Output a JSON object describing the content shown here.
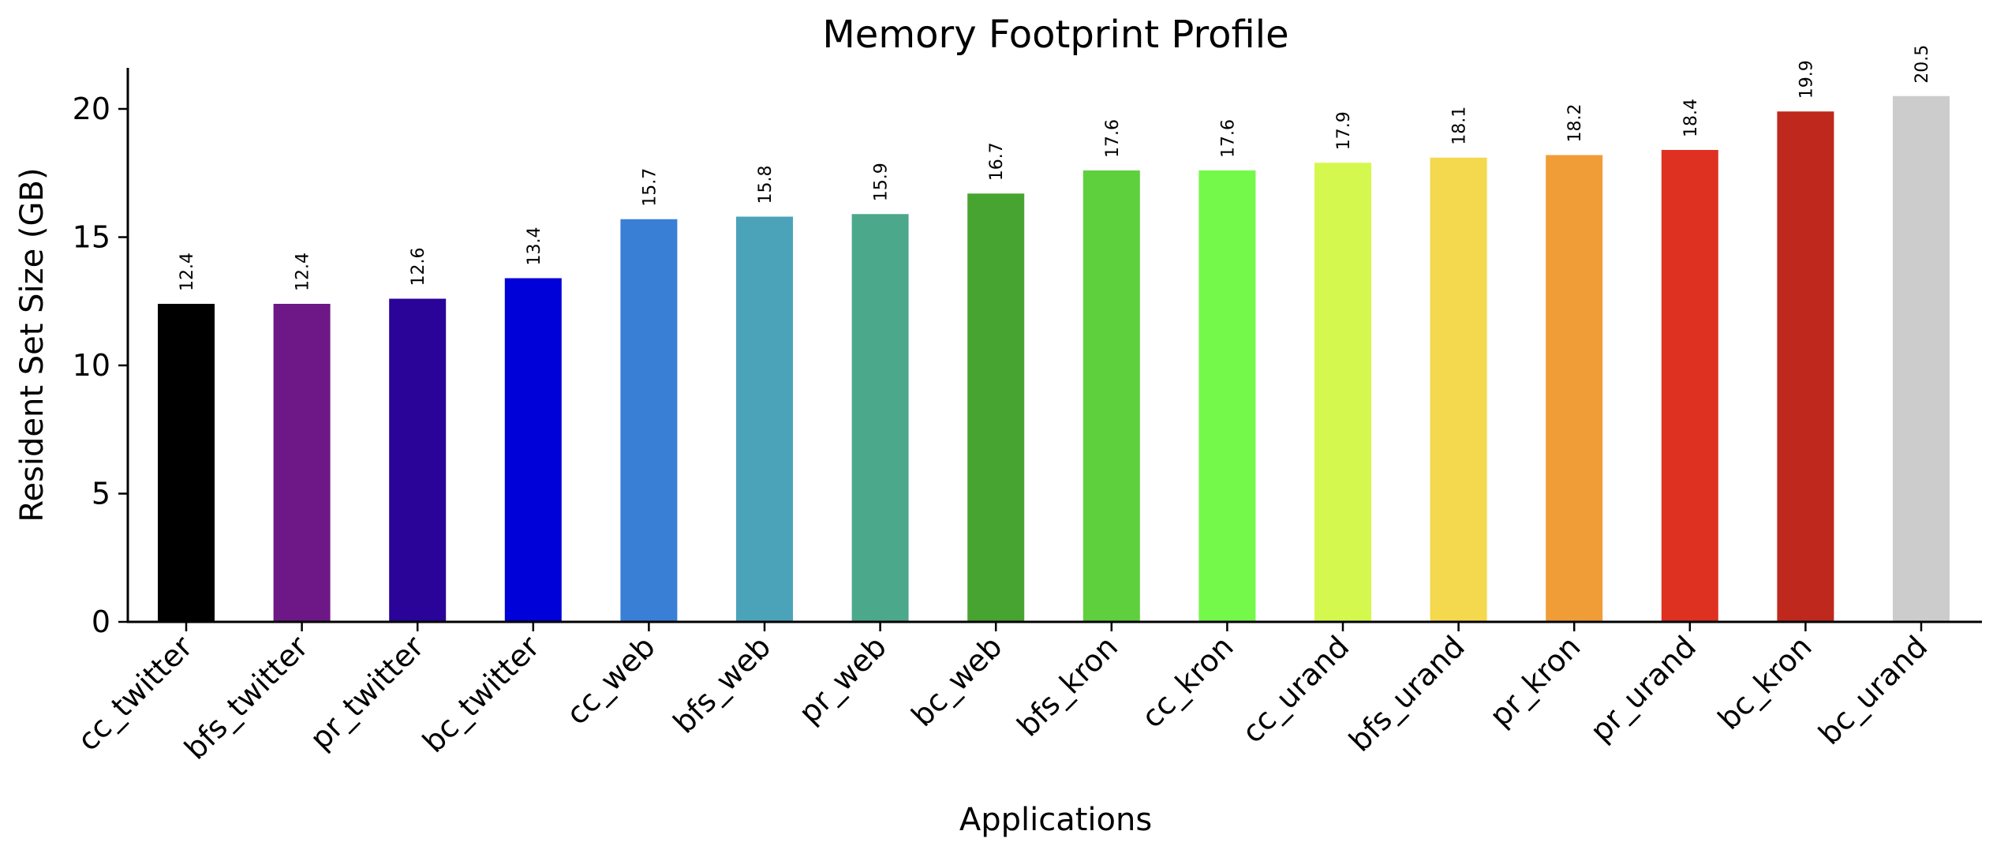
{
  "chart_data": {
    "type": "bar",
    "title": "Memory Footprint Profile",
    "xlabel": "Applications",
    "ylabel": "Resident Set Size (GB)",
    "ylim": [
      0,
      21.6
    ],
    "yticks": [
      0,
      5,
      10,
      15,
      20
    ],
    "grid": false,
    "categories": [
      "cc_twitter",
      "bfs_twitter",
      "pr_twitter",
      "bc_twitter",
      "cc_web",
      "bfs_web",
      "pr_web",
      "bc_web",
      "bfs_kron",
      "cc_kron",
      "cc_urand",
      "bfs_urand",
      "pr_kron",
      "pr_urand",
      "bc_kron",
      "bc_urand"
    ],
    "values": [
      12.4,
      12.4,
      12.6,
      13.4,
      15.7,
      15.8,
      15.9,
      16.7,
      17.6,
      17.6,
      17.9,
      18.1,
      18.2,
      18.4,
      19.9,
      20.5
    ],
    "value_labels": [
      "12.4",
      "12.4",
      "12.6",
      "13.4",
      "15.7",
      "15.8",
      "15.9",
      "16.7",
      "17.6",
      "17.6",
      "17.9",
      "18.1",
      "18.2",
      "18.4",
      "19.9",
      "20.5"
    ],
    "colors": [
      "#000000",
      "#6e1787",
      "#2a0399",
      "#0000d8",
      "#3a7fd6",
      "#4ba3ba",
      "#4ca88b",
      "#48a431",
      "#5ecf3d",
      "#74f84a",
      "#d4f84d",
      "#f4d84d",
      "#f09d37",
      "#de3122",
      "#be281d",
      "#cccccc"
    ]
  }
}
